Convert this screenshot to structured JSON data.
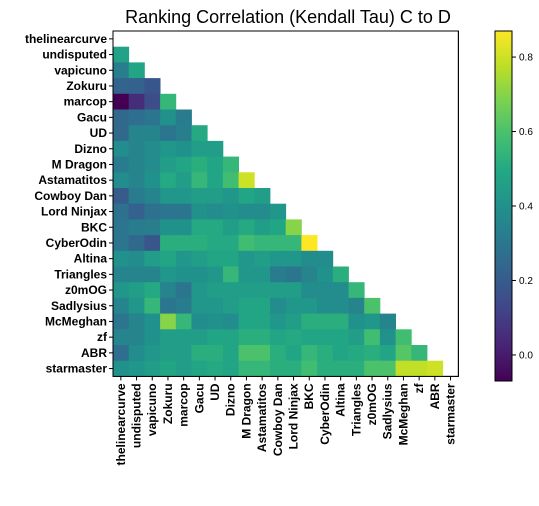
{
  "chart_data": {
    "type": "heatmap",
    "title": "Ranking Correlation (Kendall Tau) C to D",
    "labels": [
      "thelinearcurve",
      "undisputed",
      "vapicuno",
      "Zokuru",
      "marcop",
      "Gacu",
      "UD",
      "Dizno",
      "M Dragon",
      "Astamatitos",
      "Cowboy Dan",
      "Lord Ninjax",
      "BKC",
      "CyberOdin",
      "Altina",
      "Triangles",
      "z0mOG",
      "Sadlysius",
      "McMeghan",
      "zf",
      "ABR",
      "starmaster"
    ],
    "matrix": [
      [],
      [
        0.47
      ],
      [
        0.33,
        0.48
      ],
      [
        0.23,
        0.22,
        0.18
      ],
      [
        -0.07,
        0.05,
        0.15,
        0.55
      ],
      [
        0.25,
        0.27,
        0.3,
        0.4,
        0.32
      ],
      [
        0.25,
        0.35,
        0.35,
        0.3,
        0.33,
        0.5
      ],
      [
        0.38,
        0.35,
        0.38,
        0.42,
        0.4,
        0.45,
        0.45
      ],
      [
        0.32,
        0.35,
        0.38,
        0.45,
        0.48,
        0.52,
        0.48,
        0.55
      ],
      [
        0.38,
        0.35,
        0.4,
        0.5,
        0.45,
        0.55,
        0.48,
        0.58,
        0.8
      ],
      [
        0.2,
        0.32,
        0.35,
        0.42,
        0.42,
        0.45,
        0.45,
        0.42,
        0.48,
        0.45
      ],
      [
        0.28,
        0.22,
        0.28,
        0.3,
        0.3,
        0.4,
        0.38,
        0.4,
        0.38,
        0.38,
        0.42
      ],
      [
        0.3,
        0.32,
        0.33,
        0.4,
        0.4,
        0.5,
        0.5,
        0.45,
        0.5,
        0.45,
        0.48,
        0.7
      ],
      [
        0.3,
        0.25,
        0.18,
        0.52,
        0.52,
        0.52,
        0.5,
        0.5,
        0.58,
        0.55,
        0.55,
        0.55,
        0.88
      ],
      [
        0.4,
        0.38,
        0.45,
        0.48,
        0.42,
        0.45,
        0.48,
        0.48,
        0.42,
        0.45,
        0.42,
        0.42,
        0.38,
        0.38
      ],
      [
        0.35,
        0.35,
        0.35,
        0.42,
        0.4,
        0.4,
        0.42,
        0.55,
        0.42,
        0.42,
        0.32,
        0.3,
        0.35,
        0.4,
        0.52
      ],
      [
        0.42,
        0.45,
        0.5,
        0.35,
        0.3,
        0.42,
        0.45,
        0.45,
        0.45,
        0.45,
        0.45,
        0.45,
        0.38,
        0.38,
        0.38,
        0.55
      ],
      [
        0.35,
        0.42,
        0.55,
        0.3,
        0.32,
        0.42,
        0.42,
        0.45,
        0.48,
        0.48,
        0.38,
        0.42,
        0.42,
        0.38,
        0.38,
        0.35,
        0.6
      ],
      [
        0.3,
        0.35,
        0.4,
        0.7,
        0.55,
        0.38,
        0.4,
        0.38,
        0.48,
        0.48,
        0.42,
        0.45,
        0.52,
        0.52,
        0.52,
        0.4,
        0.42,
        0.35
      ],
      [
        0.35,
        0.35,
        0.4,
        0.45,
        0.45,
        0.45,
        0.48,
        0.48,
        0.52,
        0.52,
        0.48,
        0.5,
        0.48,
        0.48,
        0.48,
        0.45,
        0.58,
        0.4,
        0.58
      ],
      [
        0.27,
        0.38,
        0.42,
        0.45,
        0.45,
        0.52,
        0.52,
        0.48,
        0.6,
        0.6,
        0.52,
        0.48,
        0.55,
        0.52,
        0.48,
        0.5,
        0.52,
        0.48,
        0.62,
        0.55
      ],
      [
        0.4,
        0.42,
        0.45,
        0.48,
        0.45,
        0.48,
        0.5,
        0.48,
        0.55,
        0.55,
        0.52,
        0.52,
        0.58,
        0.52,
        0.52,
        0.52,
        0.6,
        0.6,
        0.78,
        0.78,
        0.8
      ]
    ],
    "colorbar": {
      "range": [
        -0.07,
        0.87
      ],
      "ticks": [
        "0.0",
        "0.2",
        "0.4",
        "0.6",
        "0.8"
      ]
    },
    "colormap": "viridis",
    "xlabel": "",
    "ylabel": ""
  }
}
